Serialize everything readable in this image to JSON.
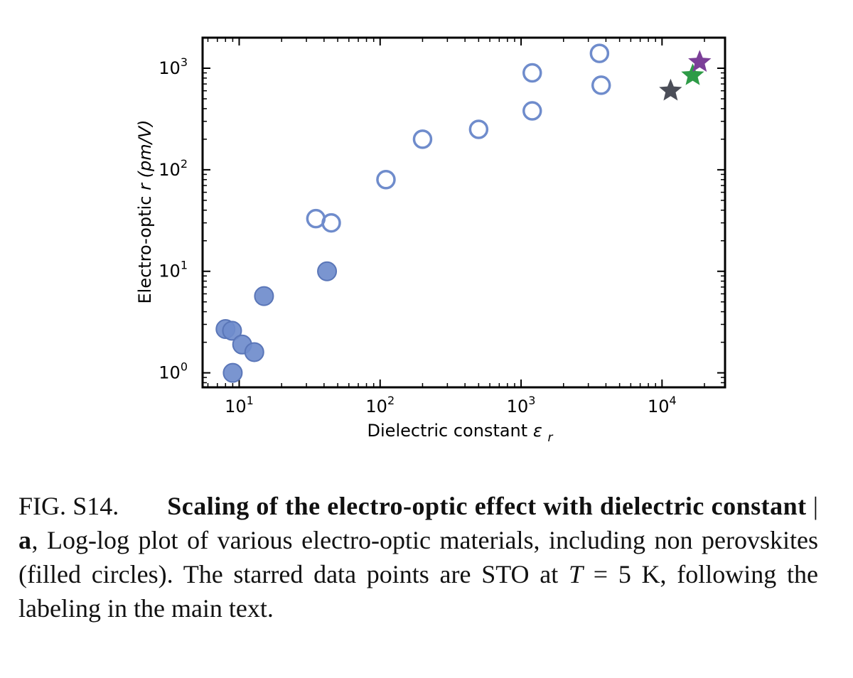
{
  "chart_data": {
    "type": "scatter",
    "xlabel": "Dielectric constant",
    "xlabel_symbol": "ε",
    "xlabel_subscript": "r",
    "ylabel_pre": "Electro-optic ",
    "ylabel_symbol": "r",
    "ylabel_unit": " (pm/V)",
    "x_scale": "log",
    "y_scale": "log",
    "xlim": [
      5.5,
      28000
    ],
    "ylim": [
      0.72,
      2000
    ],
    "x_ticks": [
      {
        "base": "10",
        "exp": "1",
        "value": 10
      },
      {
        "base": "10",
        "exp": "2",
        "value": 100
      },
      {
        "base": "10",
        "exp": "3",
        "value": 1000
      },
      {
        "base": "10",
        "exp": "4",
        "value": 10000
      }
    ],
    "y_ticks": [
      {
        "base": "10",
        "exp": "0",
        "value": 1
      },
      {
        "base": "10",
        "exp": "1",
        "value": 10
      },
      {
        "base": "10",
        "exp": "2",
        "value": 100
      },
      {
        "base": "10",
        "exp": "3",
        "value": 1000
      }
    ],
    "grid": false,
    "series": [
      {
        "marker": "open-circle",
        "color": "#6f8ccc",
        "points": [
          {
            "x": 35,
            "y": 33
          },
          {
            "x": 45,
            "y": 30
          },
          {
            "x": 110,
            "y": 80
          },
          {
            "x": 200,
            "y": 200
          },
          {
            "x": 500,
            "y": 250
          },
          {
            "x": 1200,
            "y": 380
          },
          {
            "x": 1200,
            "y": 900
          },
          {
            "x": 3600,
            "y": 1400
          },
          {
            "x": 3700,
            "y": 680
          }
        ]
      },
      {
        "marker": "filled-circle",
        "color": "#6f8ccc",
        "points": [
          {
            "x": 8,
            "y": 2.7
          },
          {
            "x": 8.9,
            "y": 2.6
          },
          {
            "x": 10.5,
            "y": 1.9
          },
          {
            "x": 12.8,
            "y": 1.6
          },
          {
            "x": 9,
            "y": 1.0
          },
          {
            "x": 15,
            "y": 5.7
          },
          {
            "x": 42,
            "y": 10
          }
        ]
      },
      {
        "marker": "star",
        "color": "#4b4e58",
        "points": [
          {
            "x": 11500,
            "y": 600
          }
        ]
      },
      {
        "marker": "star",
        "color": "#2e9b47",
        "points": [
          {
            "x": 16500,
            "y": 850
          }
        ]
      },
      {
        "marker": "star",
        "color": "#7b3f98",
        "points": [
          {
            "x": 18500,
            "y": 1150
          }
        ]
      }
    ]
  },
  "caption": {
    "fig_label": "FIG. S14.",
    "title_bold": "Scaling of the electro-optic effect with dielectric constant",
    "separator": " | ",
    "panel": "a",
    "text_1": ", Log-log plot of various electro-optic materials, including non perovskites (filled circles). The starred data points are STO at ",
    "math_var": "T",
    "text_2": " = 5 K, following the labeling in the main text."
  }
}
